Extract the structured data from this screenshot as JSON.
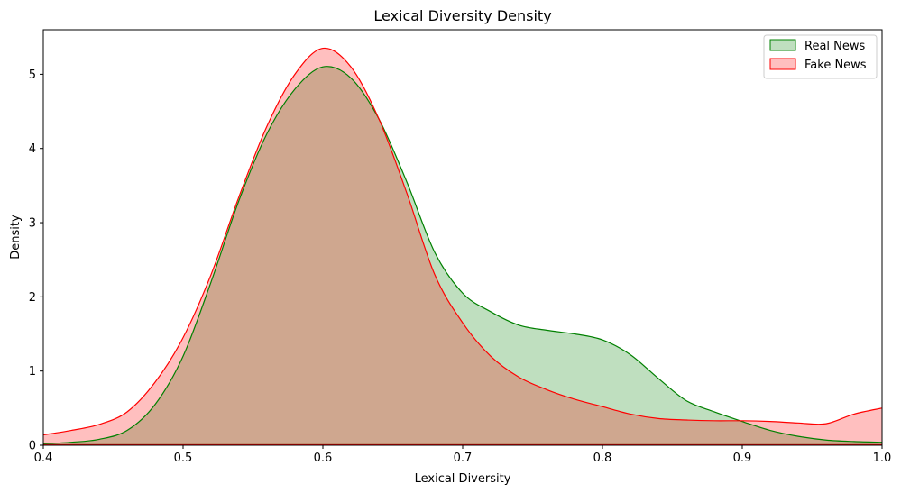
{
  "chart_data": {
    "type": "area",
    "title": "Lexical Diversity Density",
    "xlabel": "Lexical Diversity",
    "ylabel": "Density",
    "xlim": [
      0.4,
      1.0
    ],
    "ylim": [
      0,
      5.6
    ],
    "xticks": [
      "0.4",
      "0.5",
      "0.6",
      "0.7",
      "0.8",
      "0.9",
      "1.0"
    ],
    "yticks": [
      "0",
      "1",
      "2",
      "3",
      "4",
      "5"
    ],
    "grid": false,
    "legend_position": "top-right",
    "series": [
      {
        "name": "Real News",
        "stroke": "#008000",
        "fill": "#008000",
        "fill_opacity": 0.25,
        "x": [
          0.4,
          0.42,
          0.44,
          0.46,
          0.48,
          0.5,
          0.52,
          0.54,
          0.56,
          0.58,
          0.6,
          0.62,
          0.64,
          0.66,
          0.68,
          0.7,
          0.72,
          0.74,
          0.76,
          0.78,
          0.8,
          0.82,
          0.84,
          0.86,
          0.88,
          0.9,
          0.92,
          0.94,
          0.96,
          0.98,
          1.0
        ],
        "y": [
          0.02,
          0.04,
          0.08,
          0.2,
          0.55,
          1.2,
          2.2,
          3.3,
          4.2,
          4.8,
          5.1,
          4.95,
          4.4,
          3.55,
          2.6,
          2.05,
          1.8,
          1.62,
          1.55,
          1.5,
          1.42,
          1.22,
          0.9,
          0.6,
          0.45,
          0.32,
          0.2,
          0.12,
          0.07,
          0.05,
          0.04
        ]
      },
      {
        "name": "Fake News",
        "stroke": "#ff0000",
        "fill": "#ff0000",
        "fill_opacity": 0.25,
        "x": [
          0.4,
          0.42,
          0.44,
          0.46,
          0.48,
          0.5,
          0.52,
          0.54,
          0.56,
          0.58,
          0.6,
          0.62,
          0.64,
          0.66,
          0.68,
          0.7,
          0.72,
          0.74,
          0.76,
          0.78,
          0.8,
          0.82,
          0.84,
          0.86,
          0.88,
          0.9,
          0.92,
          0.94,
          0.96,
          0.98,
          1.0
        ],
        "y": [
          0.14,
          0.2,
          0.28,
          0.45,
          0.85,
          1.45,
          2.3,
          3.35,
          4.3,
          5.0,
          5.35,
          5.1,
          4.4,
          3.4,
          2.3,
          1.65,
          1.2,
          0.92,
          0.75,
          0.62,
          0.52,
          0.42,
          0.36,
          0.34,
          0.33,
          0.33,
          0.32,
          0.3,
          0.29,
          0.42,
          0.5
        ]
      }
    ]
  }
}
